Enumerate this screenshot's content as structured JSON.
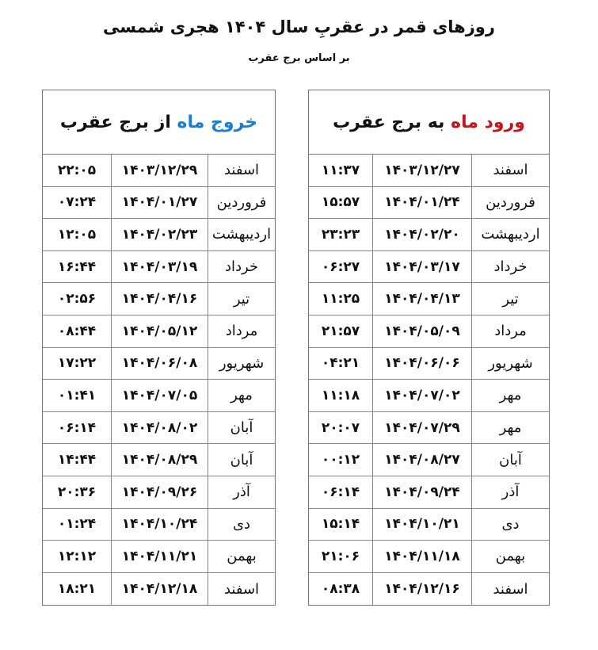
{
  "title": "روزهای قمر در عقربِ سال ۱۴۰۴ هجری شمسی",
  "subtitle": "بر اساس برج عقرب",
  "entry_table": {
    "header_highlight": "ورود ماه",
    "header_rest": " به برج عقرب",
    "highlight_color": "#c4161c",
    "rows": [
      {
        "month": "اسفند",
        "date": "۱۴۰۳/۱۲/۲۷",
        "time": "۱۱:۳۷"
      },
      {
        "month": "فروردین",
        "date": "۱۴۰۴/۰۱/۲۴",
        "time": "۱۵:۵۷"
      },
      {
        "month": "اردیبهشت",
        "date": "۱۴۰۴/۰۲/۲۰",
        "time": "۲۳:۲۳"
      },
      {
        "month": "خرداد",
        "date": "۱۴۰۴/۰۳/۱۷",
        "time": "۰۶:۲۷"
      },
      {
        "month": "تیر",
        "date": "۱۴۰۴/۰۴/۱۳",
        "time": "۱۱:۲۵"
      },
      {
        "month": "مرداد",
        "date": "۱۴۰۴/۰۵/۰۹",
        "time": "۲۱:۵۷"
      },
      {
        "month": "شهریور",
        "date": "۱۴۰۴/۰۶/۰۶",
        "time": "۰۴:۲۱"
      },
      {
        "month": "مهر",
        "date": "۱۴۰۴/۰۷/۰۲",
        "time": "۱۱:۱۸"
      },
      {
        "month": "مهر",
        "date": "۱۴۰۴/۰۷/۲۹",
        "time": "۲۰:۰۷"
      },
      {
        "month": "آبان",
        "date": "۱۴۰۴/۰۸/۲۷",
        "time": "۰۰:۱۲"
      },
      {
        "month": "آذر",
        "date": "۱۴۰۴/۰۹/۲۴",
        "time": "۰۶:۱۴"
      },
      {
        "month": "دی",
        "date": "۱۴۰۴/۱۰/۲۱",
        "time": "۱۵:۱۴"
      },
      {
        "month": "بهمن",
        "date": "۱۴۰۴/۱۱/۱۸",
        "time": "۲۱:۰۶"
      },
      {
        "month": "اسفند",
        "date": "۱۴۰۴/۱۲/۱۶",
        "time": "۰۸:۳۸"
      }
    ]
  },
  "exit_table": {
    "header_highlight": "خروج ماه",
    "header_rest": " از برج عقرب",
    "highlight_color": "#1b7fd1",
    "rows": [
      {
        "month": "اسفند",
        "date": "۱۴۰۳/۱۲/۲۹",
        "time": "۲۲:۰۵"
      },
      {
        "month": "فروردین",
        "date": "۱۴۰۴/۰۱/۲۷",
        "time": "۰۷:۲۴"
      },
      {
        "month": "اردیبهشت",
        "date": "۱۴۰۴/۰۲/۲۳",
        "time": "۱۲:۰۵"
      },
      {
        "month": "خرداد",
        "date": "۱۴۰۴/۰۳/۱۹",
        "time": "۱۶:۴۴"
      },
      {
        "month": "تیر",
        "date": "۱۴۰۴/۰۴/۱۶",
        "time": "۰۲:۵۶"
      },
      {
        "month": "مرداد",
        "date": "۱۴۰۴/۰۵/۱۲",
        "time": "۰۸:۴۴"
      },
      {
        "month": "شهریور",
        "date": "۱۴۰۴/۰۶/۰۸",
        "time": "۱۷:۲۲"
      },
      {
        "month": "مهر",
        "date": "۱۴۰۴/۰۷/۰۵",
        "time": "۰۱:۴۱"
      },
      {
        "month": "آبان",
        "date": "۱۴۰۴/۰۸/۰۲",
        "time": "۰۶:۱۴"
      },
      {
        "month": "آبان",
        "date": "۱۴۰۴/۰۸/۲۹",
        "time": "۱۴:۴۴"
      },
      {
        "month": "آذر",
        "date": "۱۴۰۴/۰۹/۲۶",
        "time": "۲۰:۳۶"
      },
      {
        "month": "دی",
        "date": "۱۴۰۴/۱۰/۲۴",
        "time": "۰۱:۲۴"
      },
      {
        "month": "بهمن",
        "date": "۱۴۰۴/۱۱/۲۱",
        "time": "۱۲:۱۲"
      },
      {
        "month": "اسفند",
        "date": "۱۴۰۴/۱۲/۱۸",
        "time": "۱۸:۲۱"
      }
    ]
  }
}
